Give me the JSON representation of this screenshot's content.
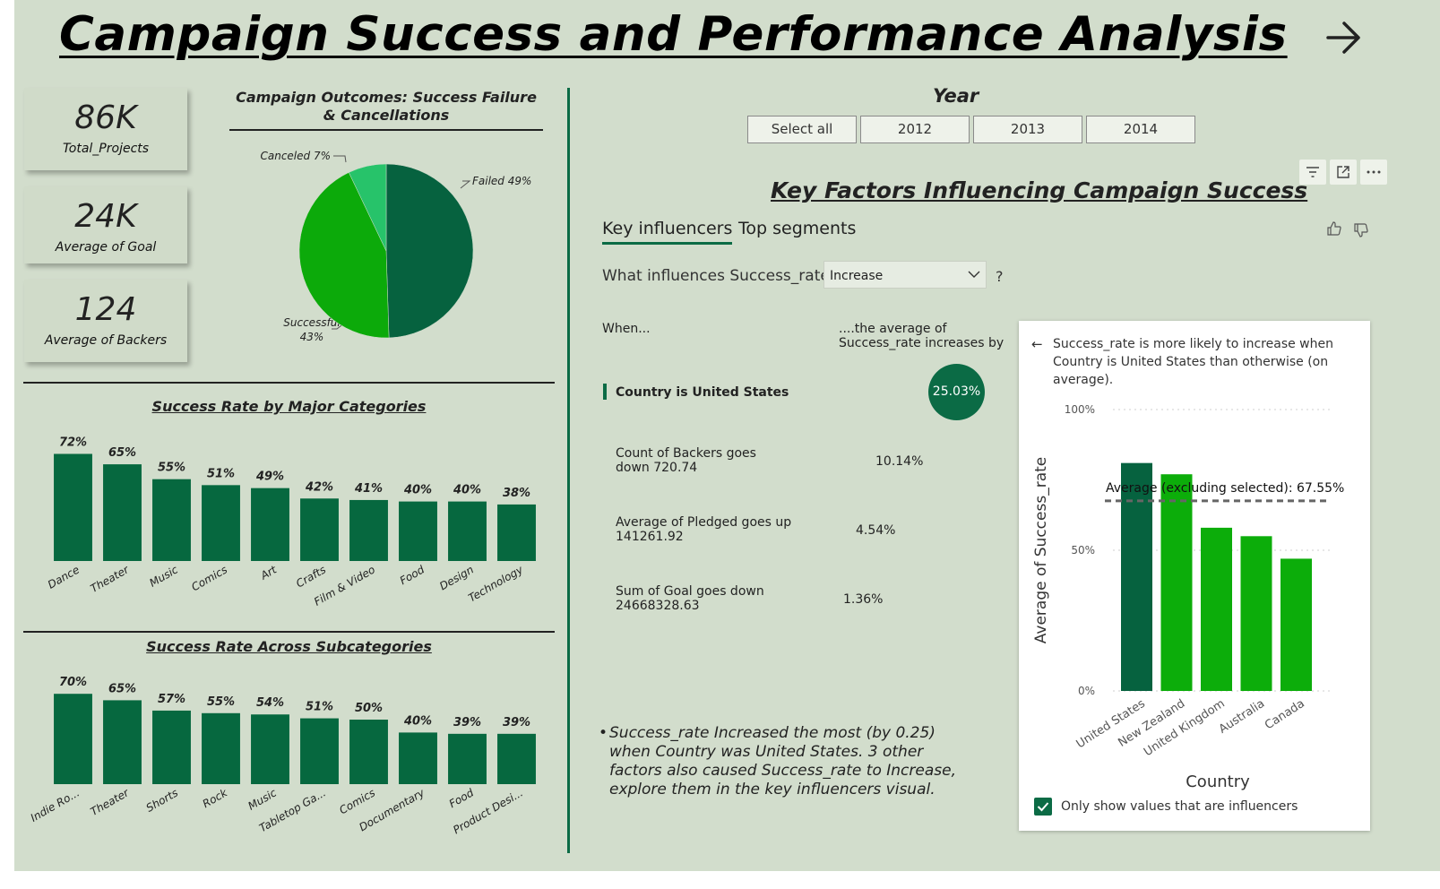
{
  "page": {
    "title": "Campaign Success and Performance Analysis",
    "nav_icon": "arrow-right-icon"
  },
  "kpis": [
    {
      "value": "86K",
      "label": "Total_Projects"
    },
    {
      "value": "24K",
      "label": "Average of Goal"
    },
    {
      "value": "124",
      "label": "Average of Backers"
    }
  ],
  "outcomes_chart": {
    "title": "Campaign Outcomes: Success Failure & Cancellations",
    "labels": {
      "failed": "Failed 49%",
      "successful_1": "Successful",
      "successful_2": "43%",
      "canceled": "Canceled 7%"
    }
  },
  "categories_chart": {
    "title": "Success Rate by Major Categories"
  },
  "subcategories_chart": {
    "title": "Success Rate Across Subcategories"
  },
  "chart_data": [
    {
      "type": "pie",
      "title": "Campaign Outcomes: Success Failure & Cancellations",
      "slices": [
        {
          "label": "Failed",
          "value": 49
        },
        {
          "label": "Successful",
          "value": 43
        },
        {
          "label": "Canceled",
          "value": 7
        }
      ],
      "colors": [
        "#06623f",
        "#0caa0a",
        "#27c36a"
      ]
    },
    {
      "type": "bar",
      "title": "Success Rate by Major Categories",
      "categories": [
        "Dance",
        "Theater",
        "Music",
        "Comics",
        "Art",
        "Crafts",
        "Film & Video",
        "Food",
        "Design",
        "Technology"
      ],
      "values": [
        72,
        65,
        55,
        51,
        49,
        42,
        41,
        40,
        40,
        38
      ],
      "value_labels": [
        "72%",
        "65%",
        "55%",
        "51%",
        "49%",
        "42%",
        "41%",
        "40%",
        "40%",
        "38%"
      ],
      "color": "#06683f"
    },
    {
      "type": "bar",
      "title": "Success Rate Across Subcategories",
      "categories": [
        "Indie Ro...",
        "Theater",
        "Shorts",
        "Rock",
        "Music",
        "Tabletop Ga...",
        "Comics",
        "Documentary",
        "Food",
        "Product Desi..."
      ],
      "values": [
        70,
        65,
        57,
        55,
        54,
        51,
        50,
        40,
        39,
        39
      ],
      "value_labels": [
        "70%",
        "65%",
        "57%",
        "55%",
        "54%",
        "51%",
        "50%",
        "40%",
        "39%",
        "39%"
      ],
      "color": "#06683f"
    },
    {
      "type": "bar",
      "title": "",
      "xlabel": "Country",
      "ylabel": "Average of Success_rate",
      "categories": [
        "United States",
        "New Zealand",
        "United Kingdom",
        "Australia",
        "Canada"
      ],
      "values": [
        81,
        77,
        58,
        55,
        47
      ],
      "ylim": [
        0,
        100
      ],
      "yticks": [
        "100%",
        "50%",
        "0%"
      ],
      "reference_line": {
        "value": 67.55,
        "label": "Average (excluding selected): 67.55%"
      },
      "colors": [
        "#06623f",
        "#0cad0a",
        "#0cad0a",
        "#0cad0a",
        "#0cad0a"
      ]
    }
  ],
  "year_slicer": {
    "title": "Year",
    "options": [
      "Select all",
      "2012",
      "2013",
      "2014"
    ]
  },
  "key_influencers": {
    "title": "Key Factors Influencing Campaign Success",
    "tabs": [
      "Key influencers",
      "Top segments"
    ],
    "question": "What influences Success_rate to",
    "dropdown_value": "Increase",
    "question_mark": "?",
    "col_when": "When...",
    "col_avg_1": "....the average of",
    "col_avg_2": "Success_rate increases by",
    "rows": [
      {
        "l1": "Country is United States",
        "l2": "",
        "value": "25.03%"
      },
      {
        "l1": "Count of Backers goes",
        "l2": "down 720.74",
        "value": "10.14%"
      },
      {
        "l1": "Average of Pledged goes up",
        "l2": "141261.92",
        "value": "4.54%"
      },
      {
        "l1": "Sum of Goal goes down",
        "l2": "24668328.63",
        "value": "1.36%"
      }
    ],
    "narrative": "Success_rate Increased the most (by 0.25) when Country was United States. 3 other factors also caused Success_rate to Increase, explore them in the key influencers visual.",
    "bullet": "•"
  },
  "detail_panel": {
    "back_icon": "arrow-left-icon",
    "heading": "Success_rate is more likely to increase when Country is United States than otherwise (on average).",
    "x_axis": "Country",
    "y_axis": "Average of Success_rate",
    "avg_label": "Average (excluding selected): 67.55%",
    "checkbox_label": "Only show values that are influencers",
    "checkbox_checked": true
  },
  "toolbar_icons": [
    "filter-icon",
    "focus-mode-icon",
    "more-options-icon"
  ],
  "feedback_icons": [
    "thumbs-up-icon",
    "thumbs-down-icon"
  ]
}
